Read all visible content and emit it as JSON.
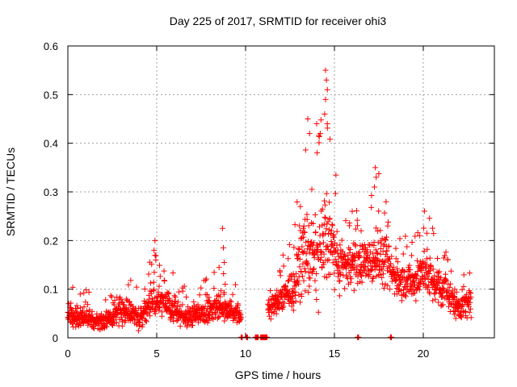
{
  "chart_data": {
    "type": "scatter",
    "title": "Day 225 of 2017, SRMTID for receiver ohi3",
    "xlabel": "GPS time / hours",
    "ylabel": "SRMTID / TECUs",
    "xlim": [
      0,
      24
    ],
    "ylim": [
      0,
      0.6
    ],
    "xticks": [
      "0",
      "5",
      "10",
      "15",
      "20"
    ],
    "yticks": [
      "0",
      "0.1",
      "0.2",
      "0.3",
      "0.4",
      "0.5",
      "0.6"
    ],
    "grid": true,
    "marker": "+",
    "series_color": "#ff0000",
    "envelope": [
      {
        "x": 0.0,
        "center": 0.045,
        "spread": 0.03
      },
      {
        "x": 1.0,
        "center": 0.04,
        "spread": 0.03
      },
      {
        "x": 1.7,
        "center": 0.03,
        "spread": 0.02
      },
      {
        "x": 2.5,
        "center": 0.045,
        "spread": 0.035
      },
      {
        "x": 3.0,
        "center": 0.06,
        "spread": 0.04
      },
      {
        "x": 4.0,
        "center": 0.04,
        "spread": 0.03
      },
      {
        "x": 4.8,
        "center": 0.08,
        "spread": 0.05
      },
      {
        "x": 5.5,
        "center": 0.07,
        "spread": 0.04
      },
      {
        "x": 6.5,
        "center": 0.045,
        "spread": 0.03
      },
      {
        "x": 7.5,
        "center": 0.05,
        "spread": 0.03
      },
      {
        "x": 8.5,
        "center": 0.065,
        "spread": 0.04
      },
      {
        "x": 9.5,
        "center": 0.05,
        "spread": 0.03
      },
      {
        "x": 9.7,
        "center": 0.045,
        "spread": 0.02
      },
      {
        "x": 11.3,
        "center": 0.06,
        "spread": 0.03
      },
      {
        "x": 12.0,
        "center": 0.08,
        "spread": 0.04
      },
      {
        "x": 12.7,
        "center": 0.1,
        "spread": 0.05
      },
      {
        "x": 13.3,
        "center": 0.18,
        "spread": 0.12
      },
      {
        "x": 14.0,
        "center": 0.16,
        "spread": 0.12
      },
      {
        "x": 14.6,
        "center": 0.22,
        "spread": 0.15
      },
      {
        "x": 15.2,
        "center": 0.15,
        "spread": 0.07
      },
      {
        "x": 16.0,
        "center": 0.15,
        "spread": 0.06
      },
      {
        "x": 17.0,
        "center": 0.16,
        "spread": 0.06
      },
      {
        "x": 17.5,
        "center": 0.17,
        "spread": 0.08
      },
      {
        "x": 18.5,
        "center": 0.12,
        "spread": 0.05
      },
      {
        "x": 19.5,
        "center": 0.11,
        "spread": 0.05
      },
      {
        "x": 20.0,
        "center": 0.14,
        "spread": 0.07
      },
      {
        "x": 21.0,
        "center": 0.1,
        "spread": 0.05
      },
      {
        "x": 22.0,
        "center": 0.065,
        "spread": 0.04
      },
      {
        "x": 22.7,
        "center": 0.07,
        "spread": 0.04
      }
    ],
    "gap_start": 9.75,
    "gap_end": 11.25,
    "spikes": [
      {
        "x": 4.9,
        "y": 0.2
      },
      {
        "x": 4.85,
        "y": 0.18
      },
      {
        "x": 4.95,
        "y": 0.16
      },
      {
        "x": 8.7,
        "y": 0.225
      },
      {
        "x": 8.75,
        "y": 0.185
      },
      {
        "x": 8.8,
        "y": 0.155
      },
      {
        "x": 13.5,
        "y": 0.45
      },
      {
        "x": 13.6,
        "y": 0.42
      },
      {
        "x": 14.0,
        "y": 0.44
      },
      {
        "x": 14.2,
        "y": 0.42
      },
      {
        "x": 14.5,
        "y": 0.55
      },
      {
        "x": 14.55,
        "y": 0.53
      },
      {
        "x": 14.6,
        "y": 0.51
      },
      {
        "x": 14.5,
        "y": 0.49
      },
      {
        "x": 14.45,
        "y": 0.46
      },
      {
        "x": 14.6,
        "y": 0.44
      },
      {
        "x": 17.3,
        "y": 0.35
      },
      {
        "x": 17.35,
        "y": 0.33
      },
      {
        "x": 17.25,
        "y": 0.31
      },
      {
        "x": 16.0,
        "y": 0.26
      },
      {
        "x": 16.5,
        "y": 0.22
      },
      {
        "x": 18.0,
        "y": 0.23
      },
      {
        "x": 19.8,
        "y": 0.21
      },
      {
        "x": 20.2,
        "y": 0.215
      }
    ],
    "baseline_points": [
      9.75,
      10.05,
      10.55,
      10.65,
      10.85,
      10.95,
      11.05,
      11.15,
      16.3,
      18.15
    ]
  }
}
